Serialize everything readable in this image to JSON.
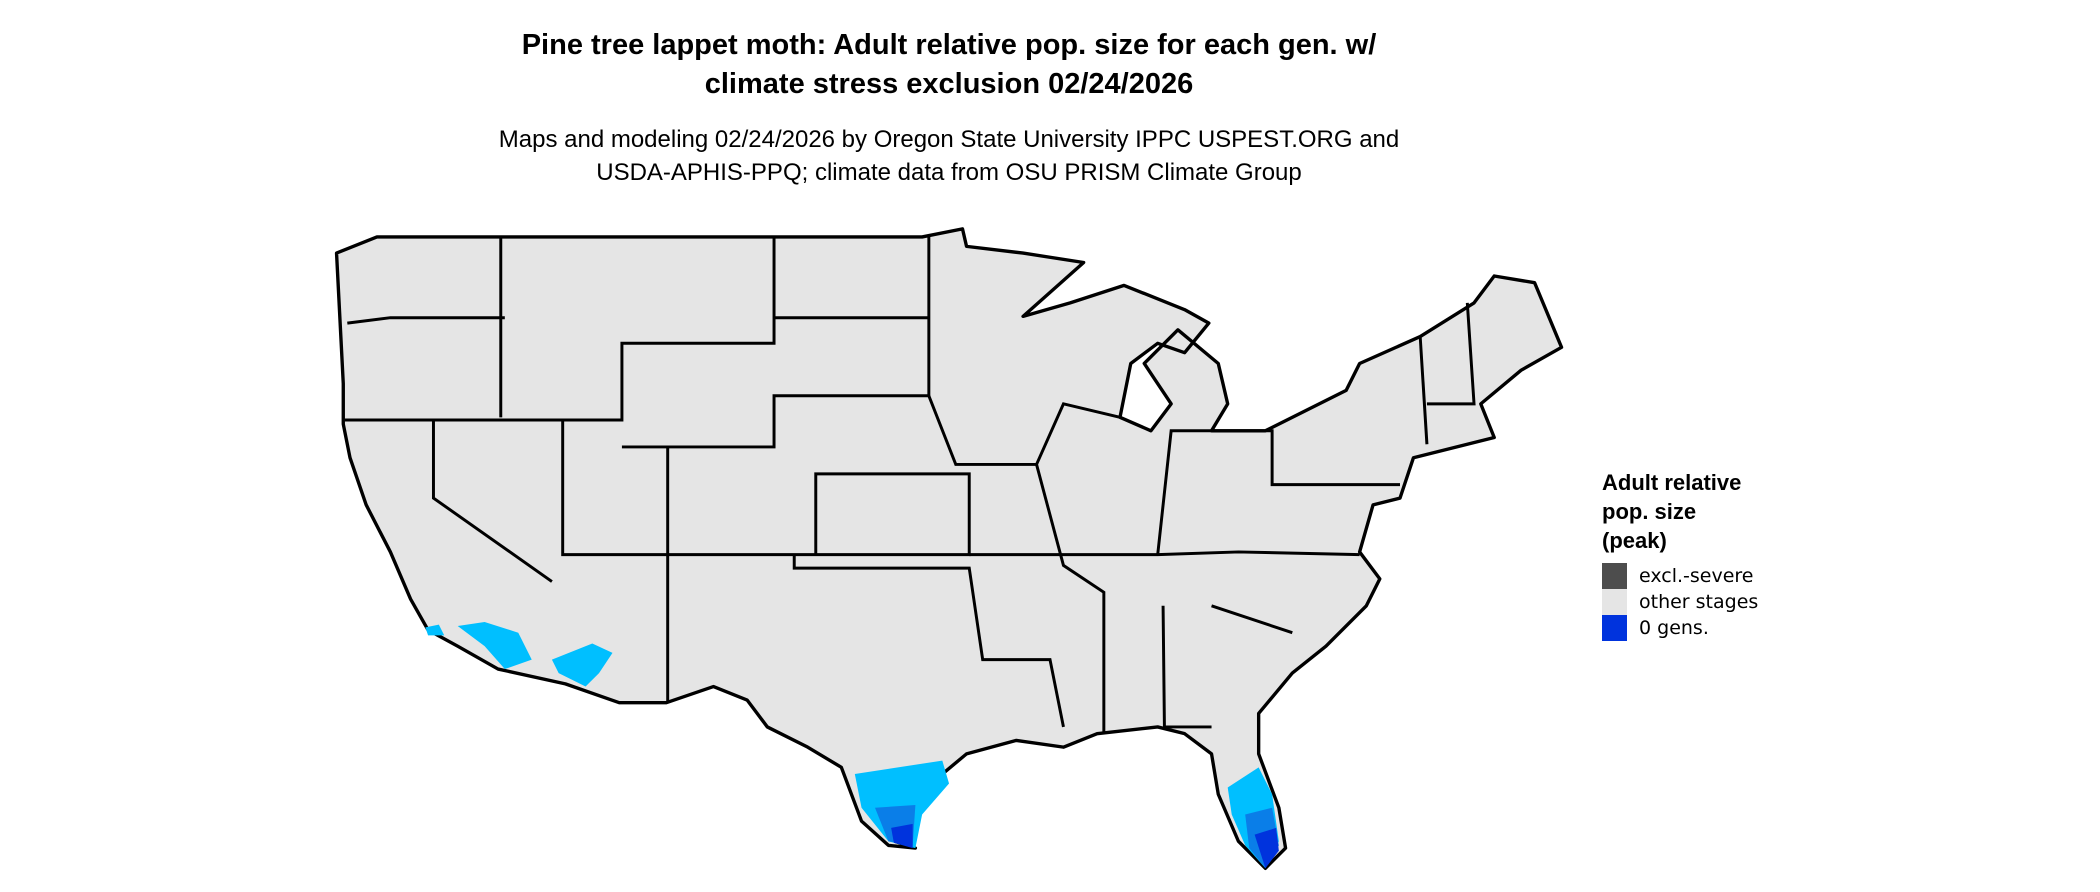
{
  "title": {
    "line1": "Pine tree lappet moth: Adult relative pop. size for each gen. w/",
    "line2": "climate stress exclusion 02/24/2026"
  },
  "subtitle": {
    "line1": "Maps and modeling 02/24/2026 by Oregon State University IPPC USPEST.ORG and",
    "line2": "USDA-APHIS-PPQ; climate data from OSU PRISM Climate Group"
  },
  "map": {
    "region": "Contiguous United States",
    "land_color": "#e5e5e5",
    "border_color": "#000000",
    "zone_colors": [
      "#00bfff",
      "#0a7ee8",
      "#0033dd"
    ]
  },
  "legend": {
    "title_lines": [
      "Adult relative",
      "pop. size",
      "(peak)"
    ],
    "items": [
      {
        "label": "excl.-severe",
        "color": "#4d4d4d"
      },
      {
        "label": "other stages",
        "color": "#e5e5e5"
      },
      {
        "label": "0 gens.",
        "color": "#0033dd"
      }
    ]
  }
}
